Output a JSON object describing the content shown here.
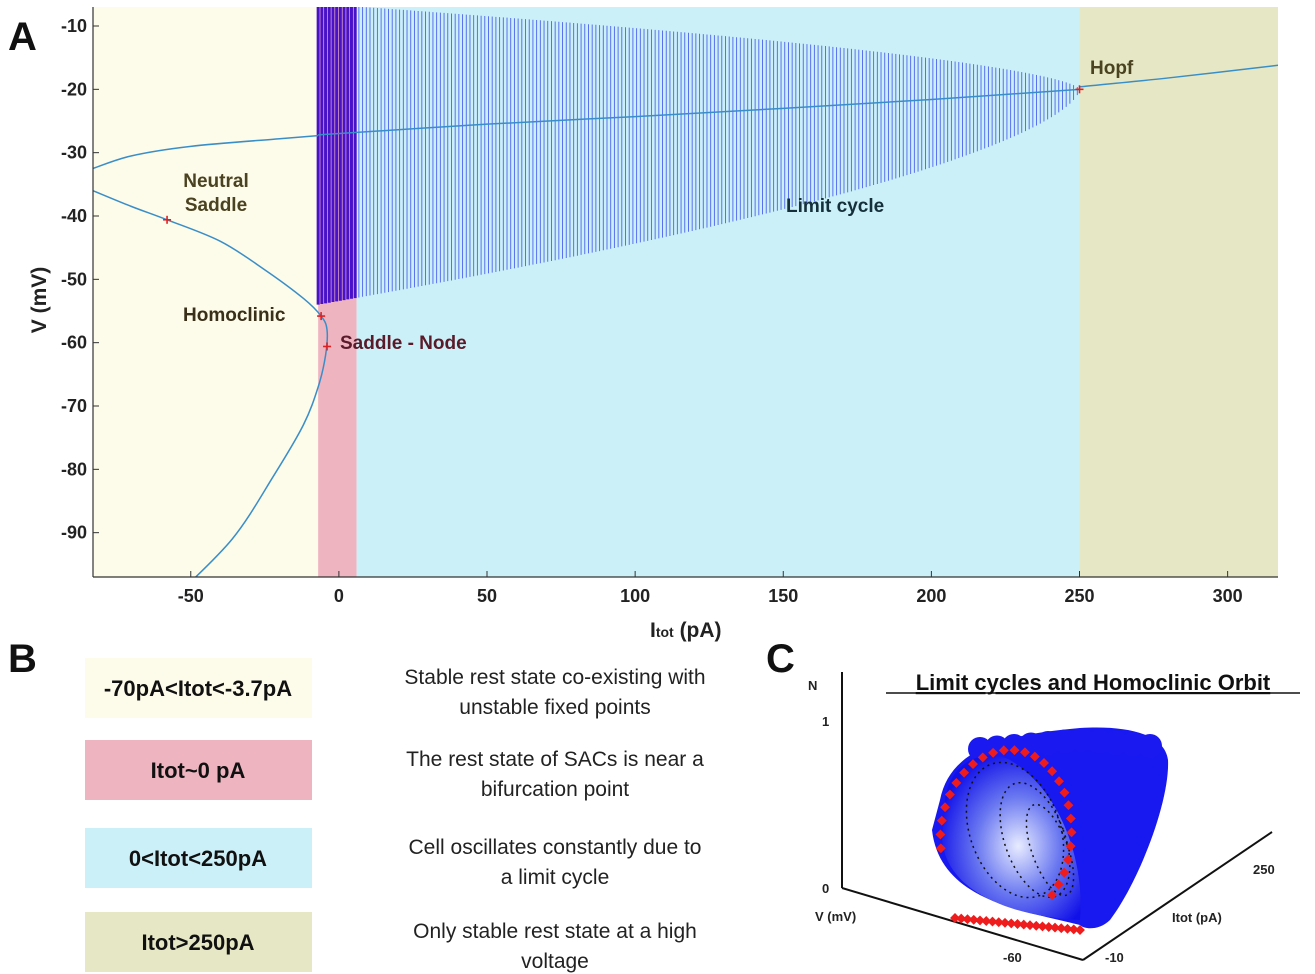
{
  "panels": {
    "a": "A",
    "b": "B",
    "c": "C"
  },
  "chart_data": [
    {
      "type": "line",
      "panel": "A",
      "xlabel": "Itot (pA)",
      "ylabel": "V (mV)",
      "xlim": [
        -83,
        317
      ],
      "ylim": [
        -97,
        -7
      ],
      "xticks": [
        -50,
        0,
        50,
        100,
        150,
        200,
        250,
        300
      ],
      "yticks": [
        -10,
        -20,
        -30,
        -40,
        -50,
        -60,
        -70,
        -80,
        -90
      ],
      "regions": [
        {
          "x0": -83,
          "x1": -7,
          "color": "#fdfbe9"
        },
        {
          "x0": -7,
          "x1": 6,
          "color": "#eeb4c0"
        },
        {
          "x0": 6,
          "x1": 250,
          "color": "#ccf0f8"
        },
        {
          "x0": 250,
          "x1": 317,
          "color": "#e6e8c5"
        }
      ],
      "limit_cycle": {
        "x_start": -7,
        "x_end": 250,
        "v_max_start": -6.5,
        "v_min_start": -54,
        "converge_v": -20,
        "color": "#2233ee",
        "dark_band_end": 6,
        "dark_color": "#4a12c8"
      },
      "series": [
        {
          "points": [
            [
              -83,
              -32.5
            ],
            [
              -70,
              -30.5
            ],
            [
              -50,
              -29
            ],
            [
              -20,
              -27.8
            ],
            [
              -7,
              -27.3
            ]
          ],
          "color": "#3a8ec8"
        },
        {
          "points": [
            [
              -7,
              -27.2
            ],
            [
              50,
              -25.5
            ],
            [
              100,
              -24.3
            ],
            [
              150,
              -23
            ],
            [
              200,
              -21.6
            ],
            [
              250,
              -20
            ]
          ],
          "color": "#3a8ec8"
        },
        {
          "points": [
            [
              250,
              -19.6
            ],
            [
              280,
              -18.2
            ],
            [
              317,
              -16.2
            ]
          ],
          "color": "#3a8ec8"
        },
        {
          "points": [
            [
              -83,
              -36
            ],
            [
              -70,
              -38.5
            ],
            [
              -58,
              -40.6
            ],
            [
              -40,
              -44
            ],
            [
              -25,
              -48.5
            ],
            [
              -12,
              -53
            ],
            [
              -6,
              -55.8
            ],
            [
              -4,
              -58
            ],
            [
              -4.5,
              -62
            ],
            [
              -7,
              -67
            ],
            [
              -12,
              -73
            ],
            [
              -22,
              -81
            ],
            [
              -36,
              -91
            ],
            [
              -55,
              -100
            ]
          ],
          "color": "#3a8ec8"
        }
      ],
      "points": [
        {
          "label": "Neutral Saddle",
          "x": -58,
          "y": -40.6
        },
        {
          "label": "Homoclinic",
          "x": -6,
          "y": -55.8
        },
        {
          "label": "Saddle - Node",
          "x": -4,
          "y": -60.6
        },
        {
          "label": "Hopf",
          "x": 250,
          "y": -20
        }
      ],
      "annotations": [
        "Neutral",
        "Saddle",
        "Homoclinic",
        "Saddle - Node",
        "Limit cycle",
        "Hopf"
      ]
    },
    {
      "type": "scatter",
      "panel": "C",
      "title": "Limit cycles and Homoclinic Orbit",
      "xlabel": "V (mV)",
      "ylabel": "N",
      "zlabel": "Itot (pA)",
      "ticks": {
        "n": [
          "1",
          "0"
        ],
        "v": [
          "-60"
        ],
        "itot": [
          "250",
          "-10"
        ]
      }
    }
  ],
  "annotations_text": {
    "neutral_1": "Neutral",
    "neutral_2": "Saddle",
    "homoclinic": "Homoclinic",
    "saddle_node": "Saddle - Node",
    "limit_cycle": "Limit cycle",
    "hopf": "Hopf"
  },
  "axis_text": {
    "x_main": "I",
    "x_sub": "tot",
    "x_unit": " (pA)",
    "y": "V (mV)"
  },
  "legend": [
    {
      "label": "-70pA<Itot<-3.7pA",
      "color": "#fdfbe9",
      "desc": [
        "Stable rest state co-existing with",
        "unstable fixed points"
      ]
    },
    {
      "label": "Itot~0 pA",
      "color": "#eeb4c0",
      "desc": [
        "The rest state of SACs is near a",
        "bifurcation point"
      ]
    },
    {
      "label": "0<Itot<250pA",
      "color": "#ccf0f8",
      "desc": [
        "Cell oscillates constantly due to",
        "a limit cycle"
      ]
    },
    {
      "label": "Itot>250pA",
      "color": "#e6e8c5",
      "desc": [
        "Only stable rest state at a high",
        "voltage"
      ]
    }
  ],
  "colors": {
    "curve": "#3a8ec8",
    "marker": "#e02020",
    "cycle": "#2233ee",
    "dark_band": "#4a12c8"
  }
}
